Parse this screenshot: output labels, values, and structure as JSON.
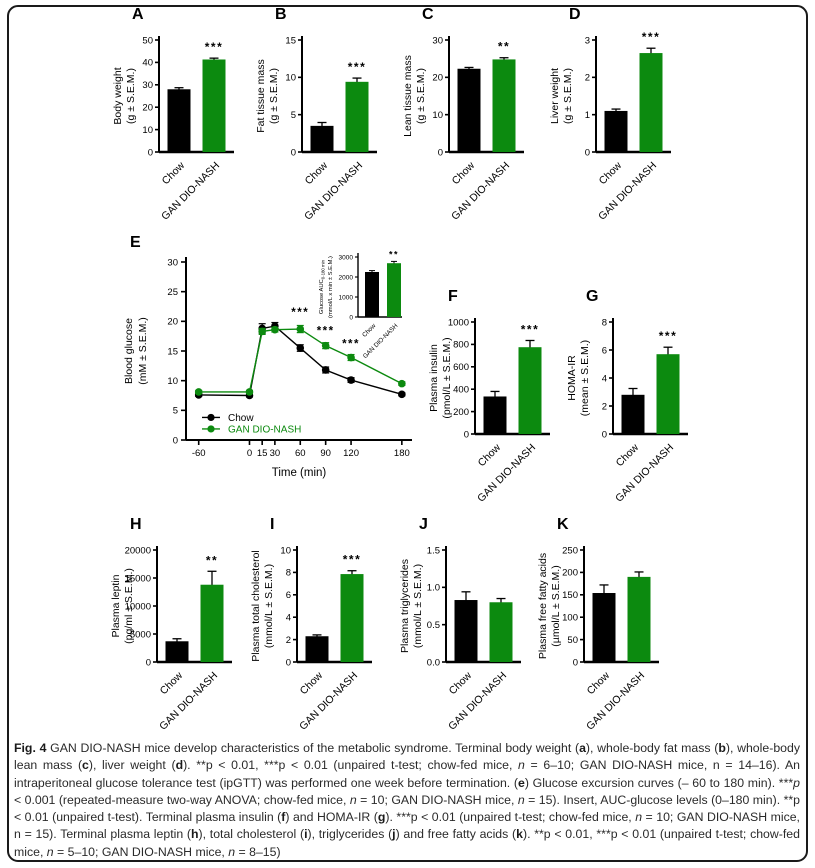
{
  "figure": {
    "caption_rich": "{b}Fig. 4{/b} GAN DIO-NASH mice develop characteristics of the metabolic syndrome. Terminal body weight ({b}a{/b}), whole-body fat mass ({b}b{/b}), whole-body lean mass ({b}c{/b}), liver weight ({b}d{/b}). **p < 0.01, ***p < 0.01 (unpaired t-test; chow-fed mice, {i}n{/i} = 6–10; GAN DIO-NASH mice, n = 14–16). An intraperitoneal glucose tolerance test (ipGTT) was performed one week before termination. ({b}e{/b}) Glucose excursion curves (– 60 to 180 min). ***{i}p{/i} < 0.001 (repeated-measure two-way ANOVA; chow-fed mice, {i}n{/i} = 10; GAN DIO-NASH mice, {i}n{/i} = 15). Insert, AUC-glucose levels (0–180 min). **p < 0.01 (unpaired t-test). Terminal plasma insulin ({b}f{/b}) and HOMA-IR ({b}g{/b}). ***p < 0.01 (unpaired t-test; chow-fed mice, {i}n{/i} = 10; GAN DIO-NASH mice, n = 15). Terminal plasma leptin ({b}h{/b}), total cholesterol ({b}i{/b}), triglycerides ({b}j{/b}) and free fatty acids ({b}k{/b}). **p < 0.01, ***p < 0.01 (unpaired t-test; chow-fed mice, {i}n{/i} = 5–10; GAN DIO-NASH mice, {i}n{/i} = 8–15)",
    "group_labels": [
      "Chow",
      "GAN DIO-NASH"
    ],
    "bar_colors": [
      "#000000",
      "#0c8a0f"
    ],
    "colors": {
      "chow": "#000000",
      "gan": "#0c8a0f"
    }
  },
  "chart_data": [
    {
      "id": "A",
      "type": "bar",
      "ylabel": [
        "Body weight",
        "(g ± S.E.M.)"
      ],
      "categories": [
        "Chow",
        "GAN DIO-NASH"
      ],
      "values": [
        28.0,
        41.3
      ],
      "errors": [
        0.7,
        0.6
      ],
      "yticks": [
        "0",
        "10",
        "20",
        "30",
        "40",
        "50"
      ],
      "ylim": [
        0,
        50
      ],
      "sig": {
        "index": 1,
        "text": "***"
      }
    },
    {
      "id": "B",
      "type": "bar",
      "ylabel": [
        "Fat tissue mass",
        "(g ± S.E.M.)"
      ],
      "categories": [
        "Chow",
        "GAN DIO-NASH"
      ],
      "values": [
        3.5,
        9.4
      ],
      "errors": [
        0.45,
        0.5
      ],
      "yticks": [
        "0",
        "5",
        "10",
        "15"
      ],
      "ylim": [
        0,
        15
      ],
      "sig": {
        "index": 1,
        "text": "***"
      }
    },
    {
      "id": "C",
      "type": "bar",
      "ylabel": [
        "Lean tissue mass",
        "(g ± S.E.M.)"
      ],
      "categories": [
        "Chow",
        "GAN DIO-NASH"
      ],
      "values": [
        22.3,
        24.8
      ],
      "errors": [
        0.35,
        0.45
      ],
      "yticks": [
        "0",
        "10",
        "20",
        "30"
      ],
      "ylim": [
        0,
        30
      ],
      "sig": {
        "index": 1,
        "text": "**"
      }
    },
    {
      "id": "D",
      "type": "bar",
      "ylabel": [
        "Liver weight",
        "(g ± S.E.M.)"
      ],
      "categories": [
        "Chow",
        "GAN DIO-NASH"
      ],
      "values": [
        1.1,
        2.65
      ],
      "errors": [
        0.05,
        0.13
      ],
      "yticks": [
        "0",
        "1",
        "2",
        "3"
      ],
      "ylim": [
        0,
        3
      ],
      "sig": {
        "index": 1,
        "text": "***"
      }
    },
    {
      "id": "E",
      "type": "line",
      "xlabel": "Time (min)",
      "ylabel": [
        "Blood glucose",
        "(mM ± S.E.M.)"
      ],
      "x": [
        -60,
        0,
        15,
        30,
        60,
        90,
        120,
        180
      ],
      "xticks": [
        "-60",
        "0",
        "15",
        "30",
        "60",
        "90",
        "120",
        "180"
      ],
      "yticks": [
        "0",
        "5",
        "10",
        "15",
        "20",
        "25",
        "30"
      ],
      "ylim": [
        0,
        30
      ],
      "xlim": [
        -75,
        192
      ],
      "series": [
        {
          "name": "Chow",
          "color": "#000000",
          "values": [
            7.6,
            7.5,
            18.8,
            19.2,
            15.5,
            11.8,
            10.1,
            7.7
          ],
          "errors": [
            0.25,
            0.25,
            0.8,
            0.6,
            0.55,
            0.5,
            0.4,
            0.25
          ]
        },
        {
          "name": "GAN DIO-NASH",
          "color": "#0c8a0f",
          "values": [
            8.1,
            8.1,
            18.3,
            18.6,
            18.7,
            15.9,
            13.9,
            9.5
          ],
          "errors": [
            0.25,
            0.25,
            0.5,
            0.4,
            0.6,
            0.5,
            0.5,
            0.3
          ]
        }
      ],
      "legend_position": "bottom-left",
      "annotations": [
        {
          "x": 60,
          "y": 20.9,
          "text": "***"
        },
        {
          "x": 90,
          "y": 17.8,
          "text": "***"
        },
        {
          "x": 120,
          "y": 15.6,
          "text": "***"
        }
      ]
    },
    {
      "id": "E-insert",
      "type": "bar",
      "ylabel_main": "Glucose AUC",
      "ylabel_sub": "0-180 min",
      "ylabel": [
        "Glucose AUC",
        "(mmol/L x min ± S.E.M.)"
      ],
      "categories": [
        "Chow",
        "GAN DIO-NASH"
      ],
      "values": [
        2250,
        2690
      ],
      "errors": [
        70,
        90
      ],
      "yticks": [
        "0",
        "1000",
        "2000",
        "3000"
      ],
      "ylim": [
        0,
        3000
      ],
      "sig": {
        "index": 1,
        "text": "**"
      }
    },
    {
      "id": "F",
      "type": "bar",
      "ylabel": [
        "Plasma insulin",
        "(pmol/L ± S.E.M.)"
      ],
      "categories": [
        "Chow",
        "GAN DIO-NASH"
      ],
      "values": [
        335,
        775
      ],
      "errors": [
        45,
        60
      ],
      "yticks": [
        "0",
        "200",
        "400",
        "600",
        "800",
        "1000"
      ],
      "ylim": [
        0,
        1000
      ],
      "sig": {
        "index": 1,
        "text": "***"
      }
    },
    {
      "id": "G",
      "type": "bar",
      "ylabel": [
        "HOMA-IR",
        "(mean ± S.E.M.)"
      ],
      "categories": [
        "Chow",
        "GAN DIO-NASH"
      ],
      "values": [
        2.8,
        5.7
      ],
      "errors": [
        0.45,
        0.5
      ],
      "yticks": [
        "0",
        "2",
        "4",
        "6",
        "8"
      ],
      "ylim": [
        0,
        8
      ],
      "sig": {
        "index": 1,
        "text": "***"
      }
    },
    {
      "id": "H",
      "type": "bar",
      "ylabel": [
        "Plasma leptin",
        "(pg/ml ± S.E.M.)"
      ],
      "categories": [
        "Chow",
        "GAN DIO-NASH"
      ],
      "values": [
        3700,
        13800
      ],
      "errors": [
        450,
        2400
      ],
      "yticks": [
        "0",
        "5000",
        "10000",
        "15000",
        "20000"
      ],
      "ylim": [
        0,
        20000
      ],
      "sig": {
        "index": 1,
        "text": "**"
      }
    },
    {
      "id": "I",
      "type": "bar",
      "ylabel": [
        "Plasma total cholesterol",
        "(mmol/L ± S.E.M.)"
      ],
      "categories": [
        "Chow",
        "GAN DIO-NASH"
      ],
      "values": [
        2.3,
        7.85
      ],
      "errors": [
        0.12,
        0.3
      ],
      "yticks": [
        "0",
        "2",
        "4",
        "6",
        "8",
        "10"
      ],
      "ylim": [
        0,
        10
      ],
      "sig": {
        "index": 1,
        "text": "***"
      }
    },
    {
      "id": "J",
      "type": "bar",
      "ylabel": [
        "Plasma triglycerides",
        "(mmol/L ± S.E.M.)"
      ],
      "categories": [
        "Chow",
        "GAN DIO-NASH"
      ],
      "values": [
        0.83,
        0.8
      ],
      "errors": [
        0.11,
        0.05
      ],
      "yticks": [
        "0.0",
        "0.5",
        "1.0",
        "1.5"
      ],
      "ylim": [
        0,
        1.5
      ],
      "sig": null
    },
    {
      "id": "K",
      "type": "bar",
      "ylabel": [
        "Plasma free fatty acids",
        "(µmol/L ± S.E.M.)"
      ],
      "categories": [
        "Chow",
        "GAN DIO-NASH"
      ],
      "values": [
        154,
        190
      ],
      "errors": [
        18,
        11
      ],
      "yticks": [
        "0",
        "50",
        "100",
        "150",
        "200",
        "250"
      ],
      "ylim": [
        0,
        250
      ],
      "sig": null
    }
  ]
}
